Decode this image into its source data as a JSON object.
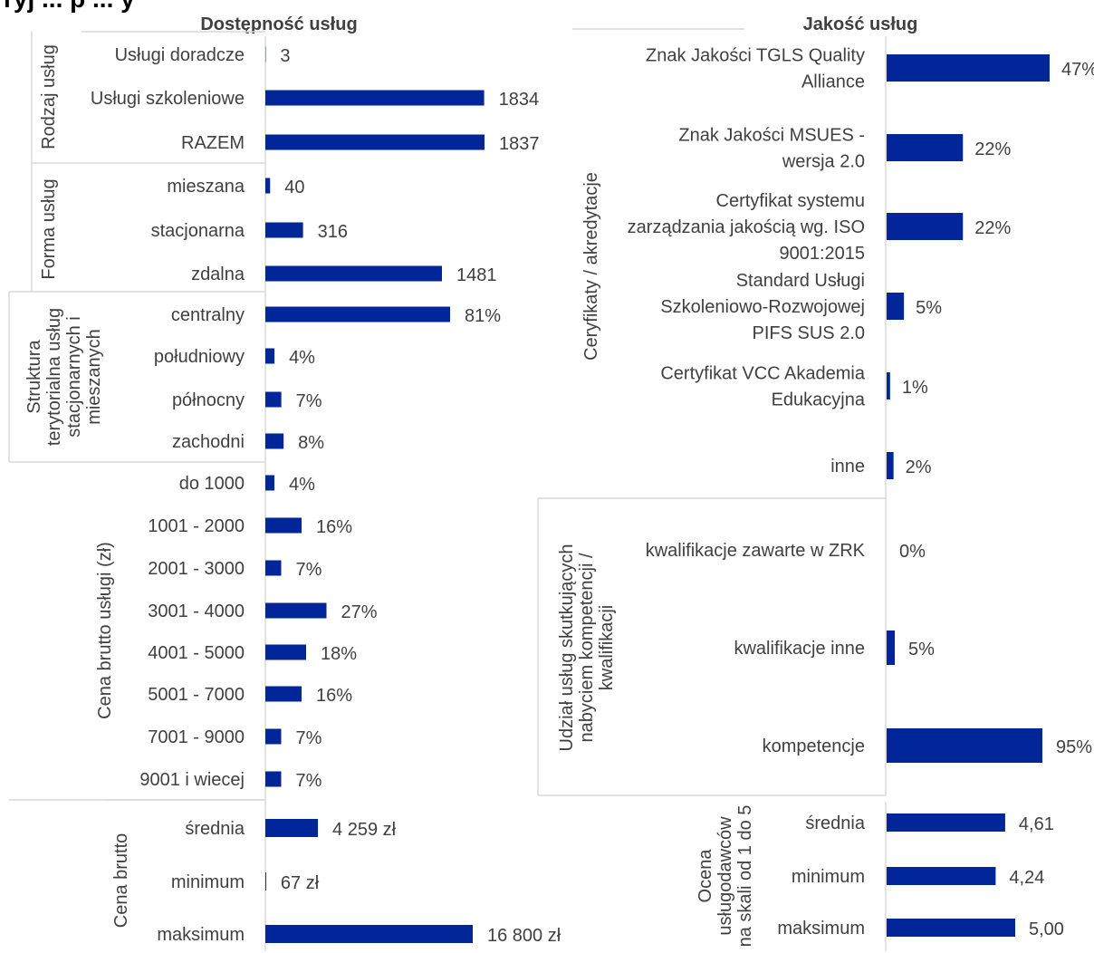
{
  "page_title": "ryj ... p ... y",
  "chart_data": [
    {
      "type": "bar",
      "title": "Dostępność usług",
      "groups": [
        {
          "name": "Rodzaj usług",
          "categories": [
            "Usługi doradcze",
            "Usługi szkoleniowe",
            "RAZEM"
          ],
          "values": [
            3,
            1834,
            1837
          ],
          "labels": [
            "3",
            "1834",
            "1837"
          ]
        },
        {
          "name": "Forma usług",
          "categories": [
            "mieszana",
            "stacjonarna",
            "zdalna"
          ],
          "values": [
            40,
            316,
            1481
          ],
          "labels": [
            "40",
            "316",
            "1481"
          ]
        },
        {
          "name": "Struktura terytorialna usług stacjonarnych i mieszanych",
          "name_lines": [
            "Struktura",
            "terytorialna usług",
            "stacjonarnych i",
            "mieszanych"
          ],
          "categories": [
            "centralny",
            "południowy",
            "północny",
            "zachodni"
          ],
          "values": [
            81,
            4,
            7,
            8
          ],
          "labels": [
            "81%",
            "4%",
            "7%",
            "8%"
          ]
        },
        {
          "name": "Cena brutto usługi (zł)",
          "categories": [
            "do 1000",
            "1001 - 2000",
            "2001 - 3000",
            "3001 - 4000",
            "4001 - 5000",
            "5001 - 7000",
            "7001 - 9000",
            "9001 i wiecej"
          ],
          "values": [
            4,
            16,
            7,
            27,
            18,
            16,
            7,
            7
          ],
          "labels": [
            "4%",
            "16%",
            "7%",
            "27%",
            "18%",
            "16%",
            "7%",
            "7%"
          ]
        },
        {
          "name": "Cena brutto",
          "categories": [
            "średnia",
            "minimum",
            "maksimum"
          ],
          "values": [
            4259,
            67,
            16800
          ],
          "labels": [
            "4 259 zł",
            "67 zł",
            "16 800 zł"
          ]
        }
      ]
    },
    {
      "type": "bar",
      "title": "Jakość usług",
      "groups": [
        {
          "name": "Ceryfikaty / akredytacje",
          "categories": [
            [
              "Znak Jakości TGLS Quality",
              "Alliance"
            ],
            [
              "Znak Jakości MSUES -",
              "wersja 2.0"
            ],
            [
              "Certyfikat systemu",
              "zarządzania jakością wg. ISO",
              "9001:2015"
            ],
            [
              "Standard Usługi",
              "Szkoleniowo-Rozwojowej",
              "PIFS SUS 2.0"
            ],
            [
              "Certyfikat VCC Akademia",
              "Edukacyjna"
            ],
            [
              "inne"
            ]
          ],
          "values": [
            47,
            22,
            22,
            5,
            1,
            2
          ],
          "labels": [
            "47%",
            "22%",
            "22%",
            "5%",
            "1%",
            "2%"
          ]
        },
        {
          "name": "Udział usług skutkujących nabyciem kompetencji / kwalifikacji",
          "name_lines": [
            "Udział usług skutkujących",
            "nabyciem kompetencji /",
            "kwalifikacji"
          ],
          "categories": [
            [
              "kwalifikacje zawarte w ZRK"
            ],
            [
              "kwalifikacje inne"
            ],
            [
              "kompetencje"
            ]
          ],
          "values": [
            0,
            5,
            95
          ],
          "labels": [
            "0%",
            "5%",
            "95%"
          ]
        },
        {
          "name": "Ocena usługodawców na skali od 1 do 5",
          "name_lines": [
            "Ocena",
            "usługodawców",
            "na skali od 1 do 5"
          ],
          "categories": [
            [
              "średnia"
            ],
            [
              "minimum"
            ],
            [
              "maksimum"
            ]
          ],
          "values": [
            4.61,
            4.24,
            5.0
          ],
          "labels": [
            "4,61",
            "4,24",
            "5,00"
          ]
        }
      ]
    }
  ],
  "colors": {
    "bar": "#00269a",
    "text": "#404040",
    "separator": "#d9d9d9"
  }
}
